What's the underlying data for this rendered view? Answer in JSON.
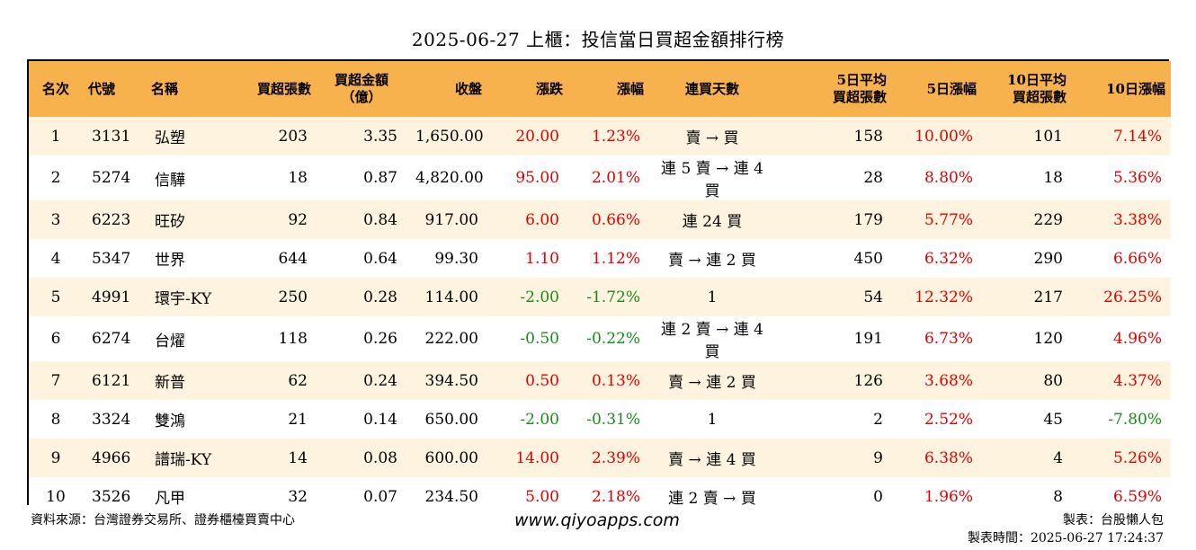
{
  "title": "2025-06-27 上櫃：投信當日買超金額排行榜",
  "headers": {
    "rank": "名次",
    "code": "代號",
    "name": "名稱",
    "buy_lots": "買超張數",
    "buy_amount_l1": "買超金額",
    "buy_amount_l2": "（億）",
    "close": "收盤",
    "change": "漲跌",
    "pct": "漲幅",
    "days": "連買天數",
    "avg5_l1": "5日平均",
    "avg5_l2": "買超張數",
    "pct5": "5日漲幅",
    "avg10_l1": "10日平均",
    "avg10_l2": "買超張數",
    "pct10": "10日漲幅"
  },
  "rows": [
    {
      "rank": "1",
      "code": "3131",
      "name": "弘塑",
      "buy_lots": "203",
      "buy_amount": "3.35",
      "close": "1,650.00",
      "change": "20.00",
      "change_color": "red",
      "pct": "1.23%",
      "pct_color": "red",
      "days": "賣 → 買",
      "avg5": "158",
      "pct5": "10.00%",
      "pct5_color": "red",
      "avg10": "101",
      "pct10": "7.14%",
      "pct10_color": "red"
    },
    {
      "rank": "2",
      "code": "5274",
      "name": "信驊",
      "buy_lots": "18",
      "buy_amount": "0.87",
      "close": "4,820.00",
      "change": "95.00",
      "change_color": "red",
      "pct": "2.01%",
      "pct_color": "red",
      "days": "連 5 賣 → 連 4 買",
      "avg5": "28",
      "pct5": "8.80%",
      "pct5_color": "red",
      "avg10": "18",
      "pct10": "5.36%",
      "pct10_color": "red"
    },
    {
      "rank": "3",
      "code": "6223",
      "name": "旺矽",
      "buy_lots": "92",
      "buy_amount": "0.84",
      "close": "917.00",
      "change": "6.00",
      "change_color": "red",
      "pct": "0.66%",
      "pct_color": "red",
      "days": "連 24 買",
      "avg5": "179",
      "pct5": "5.77%",
      "pct5_color": "red",
      "avg10": "229",
      "pct10": "3.38%",
      "pct10_color": "red"
    },
    {
      "rank": "4",
      "code": "5347",
      "name": "世界",
      "buy_lots": "644",
      "buy_amount": "0.64",
      "close": "99.30",
      "change": "1.10",
      "change_color": "red",
      "pct": "1.12%",
      "pct_color": "red",
      "days": "賣 → 連 2 買",
      "avg5": "450",
      "pct5": "6.32%",
      "pct5_color": "red",
      "avg10": "290",
      "pct10": "6.66%",
      "pct10_color": "red"
    },
    {
      "rank": "5",
      "code": "4991",
      "name": "環宇-KY",
      "buy_lots": "250",
      "buy_amount": "0.28",
      "close": "114.00",
      "change": "-2.00",
      "change_color": "green",
      "pct": "-1.72%",
      "pct_color": "green",
      "days": "1",
      "avg5": "54",
      "pct5": "12.32%",
      "pct5_color": "red",
      "avg10": "217",
      "pct10": "26.25%",
      "pct10_color": "red"
    },
    {
      "rank": "6",
      "code": "6274",
      "name": "台燿",
      "buy_lots": "118",
      "buy_amount": "0.26",
      "close": "222.00",
      "change": "-0.50",
      "change_color": "green",
      "pct": "-0.22%",
      "pct_color": "green",
      "days": "連 2 賣 → 連 4 買",
      "avg5": "191",
      "pct5": "6.73%",
      "pct5_color": "red",
      "avg10": "120",
      "pct10": "4.96%",
      "pct10_color": "red"
    },
    {
      "rank": "7",
      "code": "6121",
      "name": "新普",
      "buy_lots": "62",
      "buy_amount": "0.24",
      "close": "394.50",
      "change": "0.50",
      "change_color": "red",
      "pct": "0.13%",
      "pct_color": "red",
      "days": "賣 → 連 2 買",
      "avg5": "126",
      "pct5": "3.68%",
      "pct5_color": "red",
      "avg10": "80",
      "pct10": "4.37%",
      "pct10_color": "red"
    },
    {
      "rank": "8",
      "code": "3324",
      "name": "雙鴻",
      "buy_lots": "21",
      "buy_amount": "0.14",
      "close": "650.00",
      "change": "-2.00",
      "change_color": "green",
      "pct": "-0.31%",
      "pct_color": "green",
      "days": "1",
      "avg5": "2",
      "pct5": "2.52%",
      "pct5_color": "red",
      "avg10": "45",
      "pct10": "-7.80%",
      "pct10_color": "green"
    },
    {
      "rank": "9",
      "code": "4966",
      "name": "譜瑞-KY",
      "buy_lots": "14",
      "buy_amount": "0.08",
      "close": "600.00",
      "change": "14.00",
      "change_color": "red",
      "pct": "2.39%",
      "pct_color": "red",
      "days": "賣 → 連 4 買",
      "avg5": "9",
      "pct5": "6.38%",
      "pct5_color": "red",
      "avg10": "4",
      "pct10": "5.26%",
      "pct10_color": "red"
    },
    {
      "rank": "10",
      "code": "3526",
      "name": "凡甲",
      "buy_lots": "32",
      "buy_amount": "0.07",
      "close": "234.50",
      "change": "5.00",
      "change_color": "red",
      "pct": "2.18%",
      "pct_color": "red",
      "days": "連 2 賣 → 買",
      "avg5": "0",
      "pct5": "1.96%",
      "pct5_color": "red",
      "avg10": "8",
      "pct10": "6.59%",
      "pct10_color": "red"
    }
  ],
  "footer": {
    "source": "資料來源：台灣證券交易所、證券櫃檯買賣中心",
    "site": "www.qiyoapps.com",
    "maker": "製表：台股懶人包",
    "time": "製表時間：2025-06-27 17:24:37"
  },
  "colors": {
    "header_bg": "#f7b14d",
    "row_alt_bg": "#fef3df",
    "up": "#e00000",
    "down": "#1a8a1a"
  }
}
